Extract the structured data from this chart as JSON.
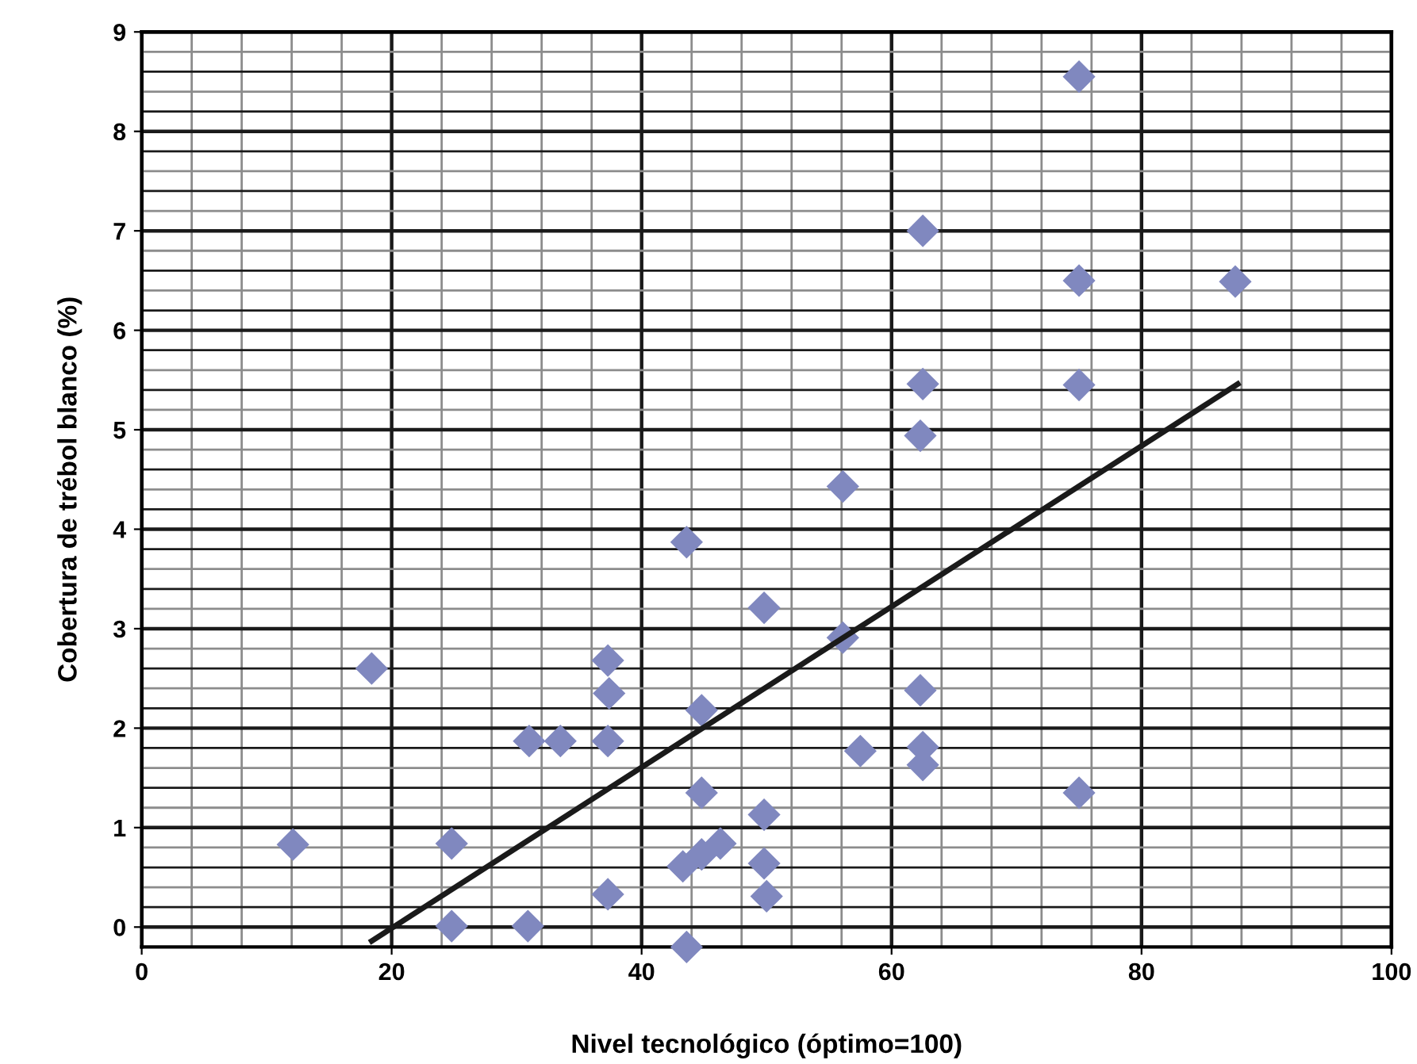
{
  "chart_data": {
    "type": "scatter",
    "xlabel": "Nivel tecnológico (óptimo=100)",
    "ylabel": "Cobertura de trébol blanco (%)",
    "xlim": [
      0,
      100
    ],
    "ylim": [
      -0.2,
      9
    ],
    "xticks": [
      0,
      {
        "value": 4,
        "label": null
      },
      {
        "value": 8,
        "label": null
      },
      {
        "value": 12,
        "label": null
      },
      {
        "value": 16,
        "label": null
      },
      20,
      {
        "value": 24,
        "label": null
      },
      {
        "value": 28,
        "label": null
      },
      {
        "value": 32,
        "label": null
      },
      {
        "value": 36,
        "label": null
      },
      40,
      {
        "value": 44,
        "label": null
      },
      {
        "value": 48,
        "label": null
      },
      {
        "value": 52,
        "label": null
      },
      {
        "value": 56,
        "label": null
      },
      60,
      {
        "value": 64,
        "label": null
      },
      {
        "value": 68,
        "label": null
      },
      {
        "value": 72,
        "label": null
      },
      {
        "value": 76,
        "label": null
      },
      80,
      {
        "value": 84,
        "label": null
      },
      {
        "value": 88,
        "label": null
      },
      {
        "value": 92,
        "label": null
      },
      {
        "value": 96,
        "label": null
      },
      100
    ],
    "yticks": [
      {
        "value": -0.2,
        "label": null
      },
      0,
      {
        "value": 0.2,
        "label": null
      },
      {
        "value": 0.4,
        "label": null
      },
      {
        "value": 0.6,
        "label": null
      },
      {
        "value": 0.8,
        "label": null
      },
      1,
      {
        "value": 1.2,
        "label": null
      },
      {
        "value": 1.4,
        "label": null
      },
      {
        "value": 1.6,
        "label": null
      },
      {
        "value": 1.8,
        "label": null
      },
      2,
      {
        "value": 2.2,
        "label": null
      },
      {
        "value": 2.4,
        "label": null
      },
      {
        "value": 2.6,
        "label": null
      },
      {
        "value": 2.8,
        "label": null
      },
      3,
      {
        "value": 3.2,
        "label": null
      },
      {
        "value": 3.4,
        "label": null
      },
      {
        "value": 3.6,
        "label": null
      },
      {
        "value": 3.8,
        "label": null
      },
      4,
      {
        "value": 4.2,
        "label": null
      },
      {
        "value": 4.4,
        "label": null
      },
      {
        "value": 4.6,
        "label": null
      },
      {
        "value": 4.8,
        "label": null
      },
      5,
      {
        "value": 5.2,
        "label": null
      },
      {
        "value": 5.4,
        "label": null
      },
      {
        "value": 5.6,
        "label": null
      },
      {
        "value": 5.8,
        "label": null
      },
      6,
      {
        "value": 6.2,
        "label": null
      },
      {
        "value": 6.4,
        "label": null
      },
      {
        "value": 6.6,
        "label": null
      },
      {
        "value": 6.8,
        "label": null
      },
      7,
      {
        "value": 7.2,
        "label": null
      },
      {
        "value": 7.4,
        "label": null
      },
      {
        "value": 7.6,
        "label": null
      },
      {
        "value": 7.8,
        "label": null
      },
      8,
      {
        "value": 8.2,
        "label": null
      },
      {
        "value": 8.4,
        "label": null
      },
      {
        "value": 8.6,
        "label": null
      },
      {
        "value": 8.8,
        "label": null
      },
      9
    ],
    "grid": true,
    "series": [
      {
        "marker": "diamond",
        "color": "#8088bf",
        "x": [
          12.1,
          18.4,
          24.8,
          24.8,
          30.9,
          31,
          33.5,
          37.3,
          37.4,
          37.3,
          37.3,
          43.6,
          43.3,
          43.6,
          44.8,
          44.8,
          44.8,
          46.3,
          49.8,
          49.8,
          49.8,
          50,
          56.1,
          57.5,
          62.3,
          62.5,
          62.5,
          75,
          75,
          62.5,
          75,
          87.5,
          62.5,
          75,
          62.3,
          56.1
        ],
        "values": [
          0.83,
          2.6,
          0.84,
          0.01,
          0.01,
          1.87,
          1.87,
          2.68,
          2.35,
          1.87,
          0.33,
          3.87,
          0.61,
          -0.2,
          2.18,
          1.35,
          0.73,
          0.84,
          3.21,
          1.13,
          0.64,
          0.31,
          2.91,
          1.77,
          2.38,
          1.81,
          1.63,
          1.35,
          8.55,
          7.0,
          6.5,
          6.49,
          5.46,
          5.45,
          4.94,
          4.43
        ]
      },
      {
        "type": "line",
        "marker": "none",
        "color": "#1a1a1a",
        "x": [
          18.4,
          87.7
        ],
        "values": [
          -0.14,
          5.46
        ]
      }
    ]
  }
}
